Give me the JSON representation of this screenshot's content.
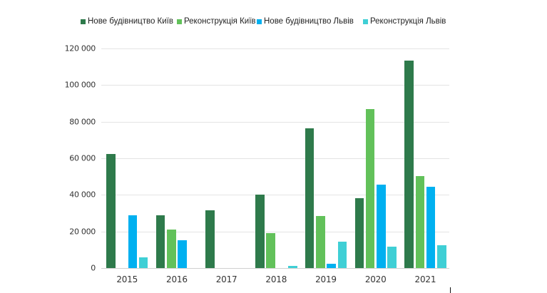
{
  "chart_data": {
    "type": "bar",
    "title": "",
    "xlabel": "",
    "ylabel": "",
    "ylim": [
      0,
      120000
    ],
    "grid": true,
    "legend_position": "top",
    "categories": [
      "2015",
      "2016",
      "2017",
      "2018",
      "2019",
      "2020",
      "2021"
    ],
    "y_ticks": [
      "0",
      "20 000",
      "40 000",
      "60 000",
      "80 000",
      "100 000",
      "120 000"
    ],
    "y_tick_values": [
      0,
      20000,
      40000,
      60000,
      80000,
      100000,
      120000
    ],
    "series": [
      {
        "name": "Нове будівництво Київ",
        "color": "#2e7a4b",
        "values": [
          62400,
          28800,
          31500,
          40200,
          76500,
          38100,
          113500
        ]
      },
      {
        "name": "Реконструкція Київ",
        "color": "#62c15a",
        "values": [
          0,
          20900,
          0,
          19000,
          28400,
          86700,
          50100
        ]
      },
      {
        "name": "Нове будівництво Львів",
        "color": "#00b0f0",
        "values": [
          28800,
          15200,
          0,
          0,
          2300,
          45400,
          44400
        ]
      },
      {
        "name": "Реконструкція Львів",
        "color": "#3fcfd5",
        "values": [
          5800,
          0,
          0,
          1200,
          14300,
          11700,
          12300
        ]
      }
    ]
  }
}
